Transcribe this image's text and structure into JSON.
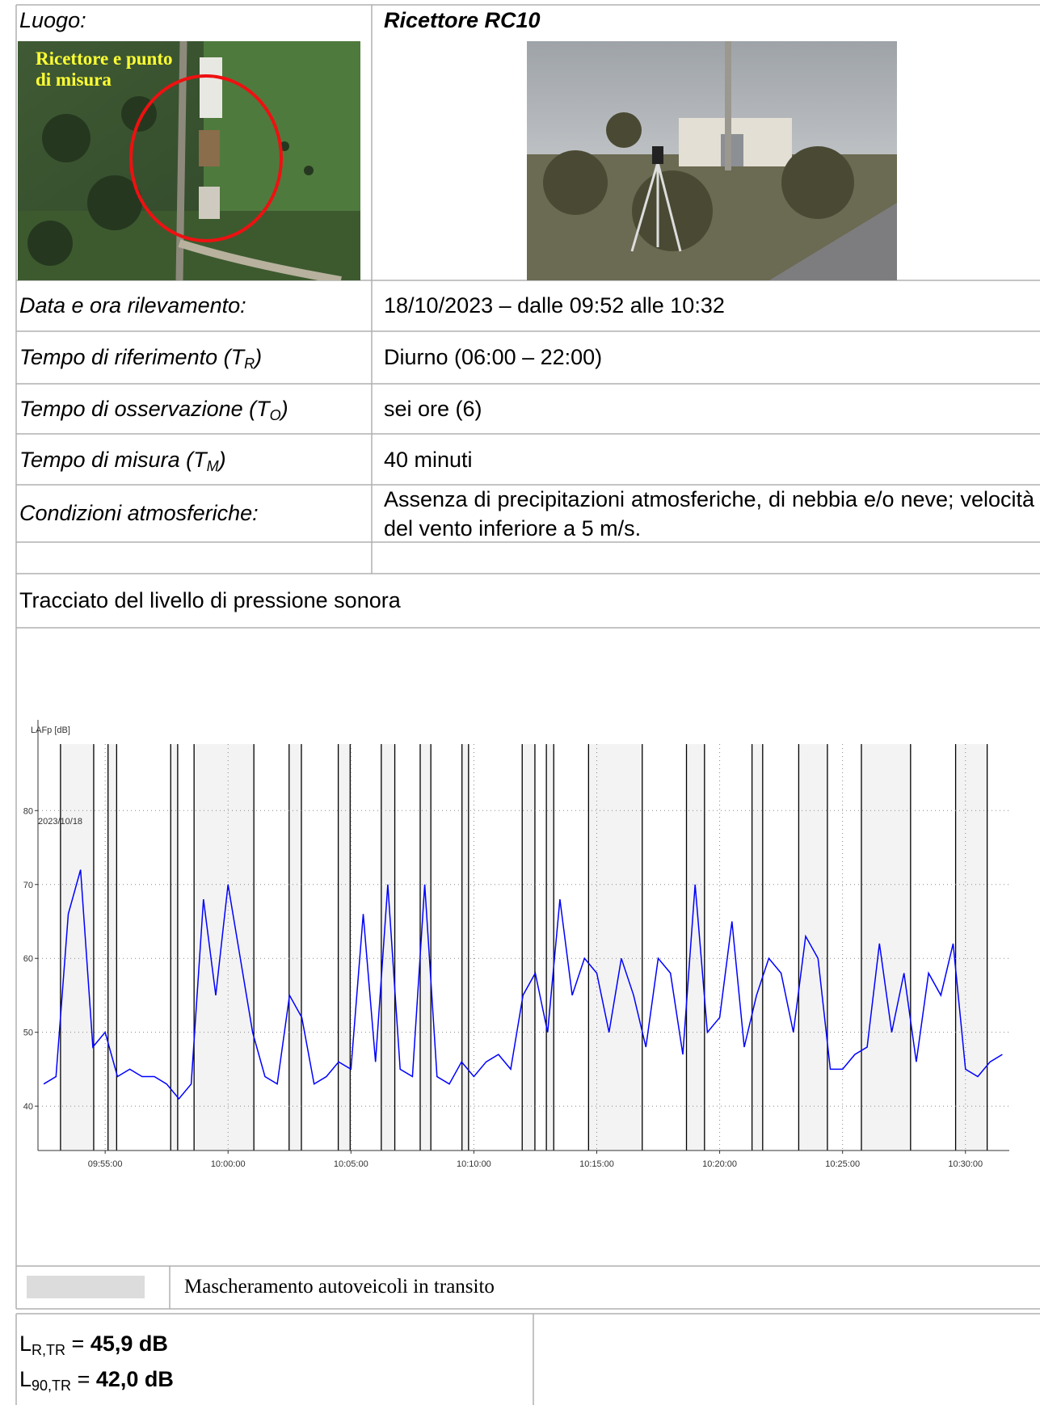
{
  "header": {
    "luogo_label": "Luogo:",
    "receptor": "Ricettore RC10",
    "map_caption": [
      "Ricettore e punto",
      "di misura"
    ]
  },
  "rows": [
    {
      "label": "Data e ora rilevamento:",
      "value": "18/10/2023 – dalle 09:52 alle 10:32"
    },
    {
      "label": "Tempo di riferimento (T",
      "label_sub": "R",
      "label_end": ")",
      "value": "Diurno (06:00 – 22:00)"
    },
    {
      "label": "Tempo di osservazione (T",
      "label_sub": "O",
      "label_end": ")",
      "value": "sei ore (6)"
    },
    {
      "label": "Tempo di misura (T",
      "label_sub": "M",
      "label_end": ")",
      "value": "40 minuti"
    },
    {
      "label": "Condizioni atmosferiche:",
      "value": "Assenza di precipitazioni atmosferiche, di nebbia e/o neve; velocità del vento inferiore a 5 m/s."
    }
  ],
  "section_title": "Tracciato del livello di pressione sonora",
  "chart": {
    "type": "line",
    "y_label": "LAFp [dB]",
    "date_label": "2023/10/18",
    "ylim": [
      34,
      89
    ],
    "yticks": [
      40,
      50,
      60,
      70,
      80
    ],
    "xlim": [
      "09:52:16",
      "10:31:47"
    ],
    "xticks": [
      "09:55:00",
      "10:00:00",
      "10:05:00",
      "10:10:00",
      "10:15:00",
      "10:20:00",
      "10:25:00",
      "10:30:00"
    ],
    "grid": true,
    "mask_color": "#dcdcdc",
    "masks": [
      [
        "09:53:11",
        "09:54:32"
      ],
      [
        "09:55:07",
        "09:55:28"
      ],
      [
        "09:57:40",
        "09:57:57"
      ],
      [
        "09:58:37",
        "10:01:03"
      ],
      [
        "10:02:29",
        "10:02:59"
      ],
      [
        "10:04:29",
        "10:04:58"
      ],
      [
        "10:06:14",
        "10:06:47"
      ],
      [
        "10:07:49",
        "10:08:15"
      ],
      [
        "10:09:31",
        "10:09:47"
      ],
      [
        "10:11:58",
        "10:12:29"
      ],
      [
        "10:12:57",
        "10:13:15"
      ],
      [
        "10:14:40",
        "10:16:51"
      ],
      [
        "10:18:39",
        "10:19:23"
      ],
      [
        "10:21:19",
        "10:21:45"
      ],
      [
        "10:23:13",
        "10:24:23"
      ],
      [
        "10:25:46",
        "10:27:46"
      ],
      [
        "10:29:36",
        "10:30:53"
      ]
    ],
    "x": [
      "09:52:30",
      "09:53:00",
      "09:53:30",
      "09:54:00",
      "09:54:30",
      "09:55:00",
      "09:55:30",
      "09:56:00",
      "09:56:30",
      "09:57:00",
      "09:57:30",
      "09:58:00",
      "09:58:30",
      "09:59:00",
      "09:59:30",
      "10:00:00",
      "10:00:30",
      "10:01:00",
      "10:01:30",
      "10:02:00",
      "10:02:30",
      "10:03:00",
      "10:03:30",
      "10:04:00",
      "10:04:30",
      "10:05:00",
      "10:05:30",
      "10:06:00",
      "10:06:30",
      "10:07:00",
      "10:07:30",
      "10:08:00",
      "10:08:30",
      "10:09:00",
      "10:09:30",
      "10:10:00",
      "10:10:30",
      "10:11:00",
      "10:11:30",
      "10:12:00",
      "10:12:30",
      "10:13:00",
      "10:13:30",
      "10:14:00",
      "10:14:30",
      "10:15:00",
      "10:15:30",
      "10:16:00",
      "10:16:30",
      "10:17:00",
      "10:17:30",
      "10:18:00",
      "10:18:30",
      "10:19:00",
      "10:19:30",
      "10:20:00",
      "10:20:30",
      "10:21:00",
      "10:21:30",
      "10:22:00",
      "10:22:30",
      "10:23:00",
      "10:23:30",
      "10:24:00",
      "10:24:30",
      "10:25:00",
      "10:25:30",
      "10:26:00",
      "10:26:30",
      "10:27:00",
      "10:27:30",
      "10:28:00",
      "10:28:30",
      "10:29:00",
      "10:29:30",
      "10:30:00",
      "10:30:30",
      "10:31:00",
      "10:31:30"
    ],
    "series": [
      {
        "color": "#0000ff",
        "values": [
          43,
          44,
          66,
          72,
          48,
          50,
          44,
          45,
          44,
          44,
          43,
          41,
          43,
          68,
          55,
          70,
          60,
          50,
          44,
          43,
          55,
          52,
          43,
          44,
          46,
          45,
          66,
          46,
          70,
          45,
          44,
          70,
          44,
          43,
          46,
          44,
          46,
          47,
          45,
          55,
          58,
          50,
          68,
          55,
          60,
          58,
          50,
          60,
          55,
          48,
          60,
          58,
          47,
          70,
          50,
          52,
          65,
          48,
          55,
          60,
          58,
          50,
          63,
          60,
          45,
          45,
          47,
          48,
          62,
          50,
          58,
          46,
          58,
          55,
          62,
          45,
          44,
          46,
          47
        ]
      }
    ]
  },
  "legend_label": "Mascheramento autoveicoli in transito",
  "results": [
    {
      "symbol": "L",
      "sub": "R,TR",
      "eq": " = ",
      "value": "45,9 dB"
    },
    {
      "symbol": "L",
      "sub": "90,TR",
      "eq": " = ",
      "value": "42,0 dB"
    }
  ]
}
